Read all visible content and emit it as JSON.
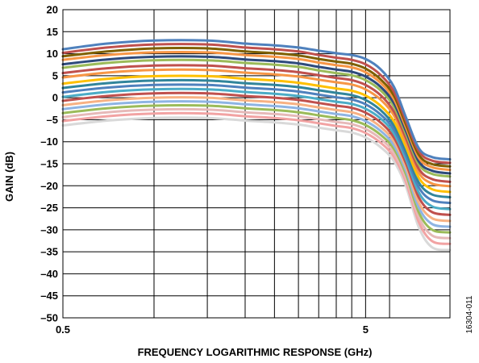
{
  "figure_id": "16304-011",
  "chart_data": {
    "type": "line",
    "title": "",
    "xlabel": "FREQUENCY LOGARITHMIC RESPONSE (GHz)",
    "ylabel": "GAIN (dB)",
    "x_scale": "log",
    "xlim": [
      0.5,
      9.5
    ],
    "ylim": [
      -50,
      20
    ],
    "y_ticks": [
      20,
      15,
      10,
      5,
      0,
      -5,
      -10,
      -15,
      -20,
      -25,
      -30,
      -35,
      -40,
      -45,
      -50
    ],
    "y_tick_labels": [
      "20",
      "15",
      "10",
      "5",
      "0",
      "–5",
      "–10",
      "–15",
      "–20",
      "–25",
      "–30",
      "–35",
      "–40",
      "–45",
      "–50"
    ],
    "x_tick_labels": [
      {
        "value": 0.5,
        "label": "0.5"
      },
      {
        "value": 5,
        "label": "5"
      }
    ],
    "x_gridlines": [
      0.5,
      1,
      1.5,
      2,
      2.5,
      3,
      3.5,
      4,
      4.5,
      5,
      6,
      9.5
    ],
    "grid": true,
    "legend": "none",
    "series": [
      {
        "color": "#4f81bd",
        "values": [
          11,
          12.3,
          13,
          13,
          12.3,
          11.9,
          11.4,
          10.7,
          10.1,
          9.7,
          8.8,
          6.5,
          2.5,
          -4.5,
          -11.5,
          -13.5,
          -14
        ]
      },
      {
        "color": "#c0504d",
        "values": [
          10.2,
          11.4,
          12.1,
          12.1,
          11.4,
          11,
          10.5,
          9.7,
          9.1,
          8.6,
          7.6,
          5.2,
          1.4,
          -5.3,
          -12.2,
          -14.3,
          -14.8
        ]
      },
      {
        "color": "#7f6000",
        "values": [
          9.4,
          10.5,
          11.2,
          11.2,
          10.5,
          10.1,
          9.6,
          8.8,
          8.2,
          7.7,
          6.6,
          4.2,
          0.5,
          -6.1,
          -13,
          -15.1,
          -15.6
        ]
      },
      {
        "color": "#f79646",
        "values": [
          8.6,
          9.7,
          10.3,
          10.3,
          9.7,
          9.3,
          8.8,
          8,
          7.4,
          6.9,
          5.8,
          3.4,
          -0.3,
          -6.8,
          -13.7,
          -15.8,
          -16.4
        ]
      },
      {
        "color": "#2e4b7c",
        "values": [
          7.6,
          8.7,
          9.3,
          9.3,
          8.7,
          8.3,
          7.8,
          7,
          6.4,
          5.9,
          4.8,
          2.5,
          -1.2,
          -7.6,
          -14.5,
          -16.6,
          -17.2
        ]
      },
      {
        "color": "#9bbb59",
        "values": [
          6.8,
          7.9,
          8.5,
          8.5,
          7.9,
          7.5,
          7,
          6.2,
          5.6,
          5.1,
          4,
          1.7,
          -2,
          -8.3,
          -15.2,
          -17.3,
          -17.9
        ]
      },
      {
        "color": "#c0504d",
        "values": [
          5.6,
          6.7,
          7.3,
          7.3,
          6.7,
          6.3,
          5.8,
          5.1,
          4.5,
          4,
          2.9,
          0.6,
          -3.1,
          -9.2,
          -16.2,
          -18.5,
          -19.1
        ]
      },
      {
        "color": "#f79646",
        "values": [
          4.6,
          5.7,
          6.3,
          6.3,
          5.7,
          5.3,
          4.8,
          4.1,
          3.5,
          3,
          1.9,
          -0.4,
          -4,
          -10.1,
          -17.1,
          -19.5,
          -20.1
        ]
      },
      {
        "color": "#ffc000",
        "values": [
          3.2,
          4.3,
          4.9,
          4.9,
          4.3,
          3.9,
          3.4,
          2.7,
          2.1,
          1.6,
          0.5,
          -1.8,
          -5.3,
          -11.2,
          -18.2,
          -20.8,
          -21.4
        ]
      },
      {
        "color": "#31859b",
        "values": [
          2.2,
          3.3,
          3.9,
          3.9,
          3.3,
          2.9,
          2.4,
          1.7,
          1.1,
          0.6,
          -0.5,
          -2.8,
          -6.3,
          -12.2,
          -19.3,
          -22,
          -22.6
        ]
      },
      {
        "color": "#4f81bd",
        "values": [
          1.2,
          2.3,
          2.9,
          2.9,
          2.3,
          1.9,
          1.4,
          0.7,
          0.1,
          -0.4,
          -1.5,
          -3.8,
          -7.2,
          -13.1,
          -20.4,
          -23.3,
          -23.9
        ]
      },
      {
        "color": "#4bacc6",
        "values": [
          0.2,
          1.3,
          1.9,
          1.9,
          1.3,
          0.9,
          0.4,
          -0.3,
          -0.9,
          -1.4,
          -2.5,
          -4.7,
          -8.1,
          -14,
          -21.6,
          -24.7,
          -25.3
        ]
      },
      {
        "color": "#c0504d",
        "values": [
          -0.7,
          0.4,
          1,
          1,
          0.4,
          0,
          -0.5,
          -1.2,
          -1.8,
          -2.3,
          -3.4,
          -5.6,
          -9,
          -14.9,
          -22.7,
          -26,
          -26.6
        ]
      },
      {
        "color": "#f7b183",
        "values": [
          -1.7,
          -0.6,
          0,
          0,
          -0.6,
          -1,
          -1.5,
          -2.2,
          -2.8,
          -3.3,
          -4.4,
          -6.6,
          -9.9,
          -15.8,
          -23.9,
          -27.4,
          -28
        ]
      },
      {
        "color": "#8eb4e3",
        "values": [
          -2.6,
          -1.5,
          -0.9,
          -0.9,
          -1.5,
          -1.9,
          -2.4,
          -3.1,
          -3.7,
          -4.2,
          -5.3,
          -7.5,
          -10.8,
          -16.6,
          -25,
          -28.7,
          -29.3
        ]
      },
      {
        "color": "#9bbb59",
        "values": [
          -3.5,
          -2.4,
          -1.8,
          -1.8,
          -2.4,
          -2.8,
          -3.3,
          -4,
          -4.6,
          -5.1,
          -6.2,
          -8.4,
          -11.6,
          -17.4,
          -26.1,
          -30,
          -30.6
        ]
      },
      {
        "color": "#e6b9b8",
        "values": [
          -4.4,
          -3.3,
          -2.7,
          -2.7,
          -3.3,
          -3.7,
          -4.2,
          -4.9,
          -5.5,
          -6,
          -7.1,
          -9.3,
          -12.5,
          -18.3,
          -27.2,
          -31.3,
          -31.9
        ]
      },
      {
        "color": "#f2a3a3",
        "values": [
          -5.3,
          -4.2,
          -3.6,
          -3.6,
          -4.2,
          -4.6,
          -5.1,
          -5.8,
          -6.4,
          -6.9,
          -8,
          -10.2,
          -13.4,
          -19.2,
          -28.3,
          -32.6,
          -33.2
        ]
      },
      {
        "color": "#d9d9d9",
        "values": [
          -6.3,
          -5.2,
          -4.6,
          -4.6,
          -5.2,
          -5.6,
          -6.1,
          -6.8,
          -7.4,
          -7.9,
          -9,
          -11.2,
          -14.4,
          -20.2,
          -29.5,
          -34,
          -34.6
        ]
      }
    ],
    "x": [
      0.5,
      0.7,
      1,
      1.5,
      2,
      2.5,
      3,
      3.5,
      4,
      4.5,
      5,
      5.6,
      6.2,
      6.8,
      7.5,
      8.3,
      9.5
    ]
  }
}
